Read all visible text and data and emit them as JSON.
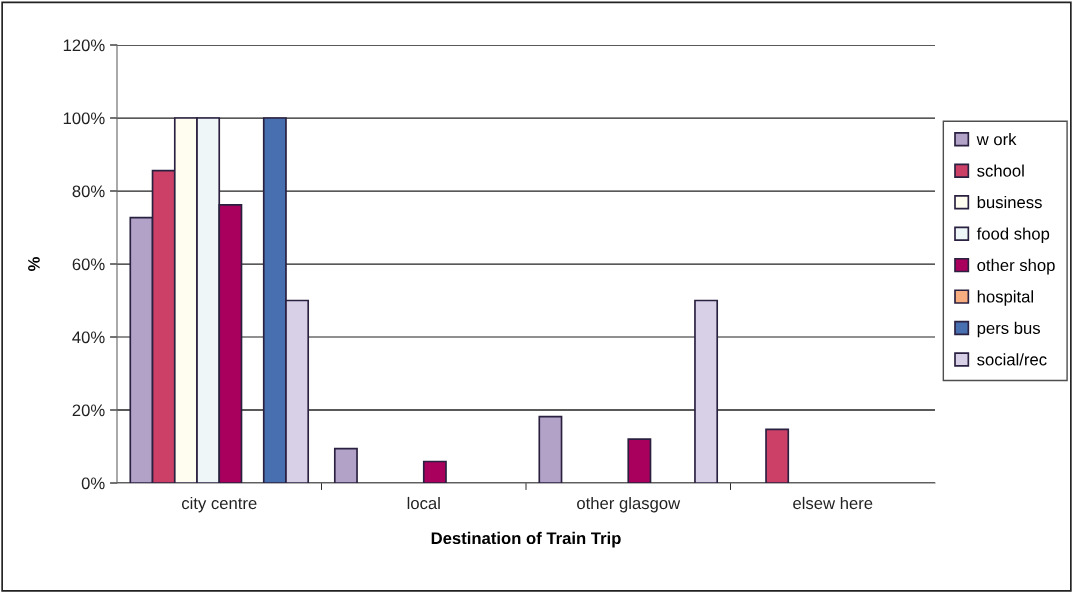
{
  "chart_data": {
    "type": "bar",
    "xlabel": "Destination of Train Trip",
    "ylabel": "%",
    "categories": [
      "city centre",
      "local",
      "other glasgow",
      "elsew here"
    ],
    "series": [
      {
        "name": "w ork",
        "color": "#b3a2c7",
        "values": [
          72.7,
          9.4,
          18.2,
          null
        ]
      },
      {
        "name": "school",
        "color": "#cc4068",
        "values": [
          85.6,
          null,
          null,
          14.7
        ]
      },
      {
        "name": "business",
        "color": "#fffdf0",
        "values": [
          100,
          null,
          null,
          null
        ]
      },
      {
        "name": "food shop",
        "color": "#eef6f8",
        "values": [
          100,
          null,
          null,
          null
        ]
      },
      {
        "name": "other shop",
        "color": "#a8005c",
        "values": [
          76.2,
          5.9,
          12.0,
          null
        ]
      },
      {
        "name": "hospital",
        "color": "#f8ad80",
        "values": [
          null,
          null,
          null,
          null
        ]
      },
      {
        "name": "pers bus",
        "color": "#4870b0",
        "values": [
          100,
          null,
          null,
          null
        ]
      },
      {
        "name": "social/rec",
        "color": "#d8d0e6",
        "values": [
          50,
          null,
          50,
          null
        ]
      }
    ],
    "ylim": [
      0,
      120
    ],
    "yticks": [
      {
        "value": 0,
        "label": "0%"
      },
      {
        "value": 20,
        "label": "20%"
      },
      {
        "value": 40,
        "label": "40%"
      },
      {
        "value": 60,
        "label": "60%"
      },
      {
        "value": 80,
        "label": "80%"
      },
      {
        "value": 100,
        "label": "100%"
      },
      {
        "value": 120,
        "label": "120%"
      }
    ],
    "grid": "y",
    "legend": "right"
  }
}
